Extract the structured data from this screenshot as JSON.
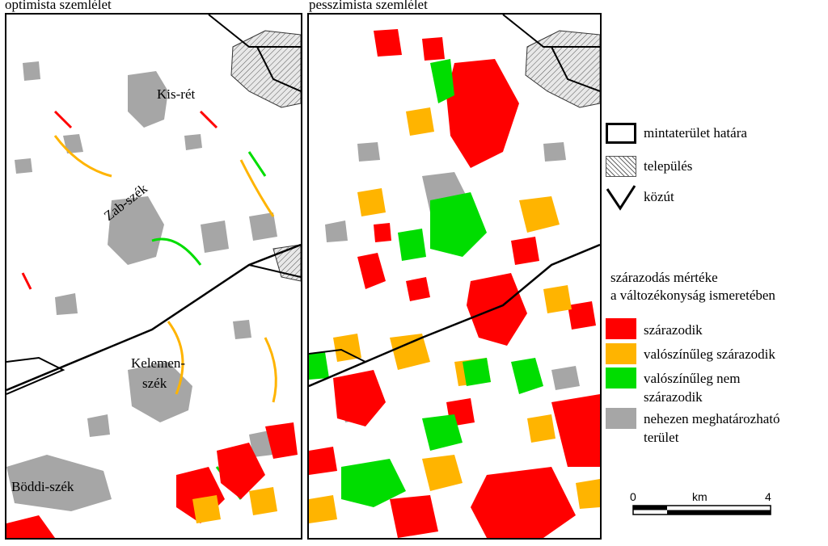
{
  "panels": {
    "left_title": "optimista szemlélet",
    "right_title": "pesszimista szemlélet"
  },
  "places": {
    "kis_ret": "Kis-rét",
    "zab_szek": "Zab-szék",
    "kelemen_szek_1": "Kelemen-",
    "kelemen_szek_2": "szék",
    "boddi_szek": "Böddi-szék"
  },
  "legend": {
    "boundary": "mintaterület határa",
    "settlement": "település",
    "road": "közút",
    "heading_1": "szárazodás mértéke",
    "heading_2": "a változékonyság ismeretében",
    "classes": [
      {
        "label": "szárazodik",
        "color": "#ff0000"
      },
      {
        "label": "valószínűleg szárazodik",
        "color": "#ffb400"
      },
      {
        "label": "valószínűleg nem",
        "label2": "szárazodik",
        "color": "#00dd00"
      },
      {
        "label": "nehezen meghatározható",
        "label2": "terület",
        "color": "#a6a6a6"
      }
    ]
  },
  "scalebar": {
    "start": "0",
    "unit": "km",
    "end": "4"
  }
}
